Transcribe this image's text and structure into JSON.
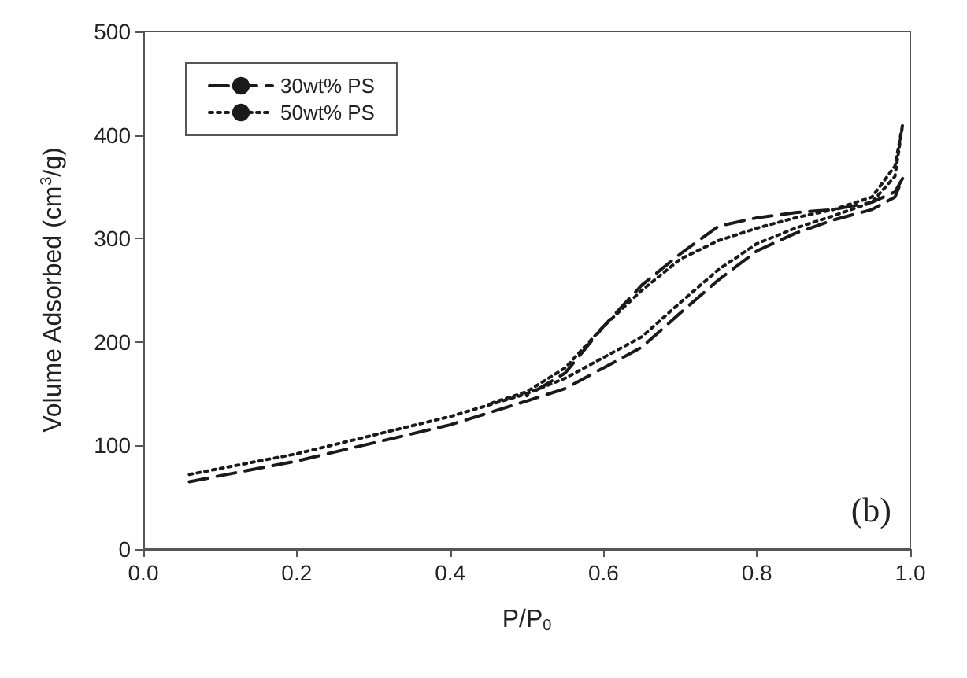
{
  "chart_data": {
    "type": "line",
    "xlabel": "P/P$_{0}$",
    "ylabel": "Volume Adsorbed (cm$^{3}$/g)",
    "xlim": [
      0,
      1
    ],
    "xticks": [
      {
        "value": 0,
        "label": "0.0"
      },
      0.2,
      0.4,
      0.6,
      0.8,
      {
        "value": 1,
        "label": "1.0"
      }
    ],
    "ylim": [
      0,
      500
    ],
    "yticks": [
      0,
      100,
      200,
      300,
      400,
      500
    ],
    "grid": false,
    "legend": "top left",
    "marker": "none",
    "annotations": [
      "(b)"
    ],
    "series": [
      {
        "name": "30wt% PS",
        "color": "#1a1a1a",
        "line_style": "dashed",
        "x": [
          0.06,
          0.2,
          0.4,
          0.5,
          0.55,
          0.6,
          0.65,
          0.7,
          0.75,
          0.8,
          0.85,
          0.9,
          0.95,
          0.98,
          0.99,
          0.98,
          0.95,
          0.9,
          0.85,
          0.8,
          0.75,
          0.7,
          0.65,
          0.6,
          0.55,
          0.5
        ],
        "values": [
          65,
          85,
          120,
          143,
          155,
          175,
          195,
          228,
          260,
          288,
          305,
          318,
          328,
          340,
          358,
          345,
          335,
          328,
          325,
          320,
          312,
          285,
          255,
          215,
          170,
          148
        ]
      },
      {
        "name": "50wt% PS",
        "color": "#1a1a1a",
        "line_style": "dotted",
        "x": [
          0.06,
          0.2,
          0.4,
          0.5,
          0.55,
          0.6,
          0.65,
          0.7,
          0.75,
          0.8,
          0.85,
          0.9,
          0.95,
          0.98,
          0.99,
          0.98,
          0.95,
          0.9,
          0.85,
          0.8,
          0.75,
          0.7,
          0.65,
          0.6,
          0.55,
          0.5,
          0.45
        ],
        "values": [
          72,
          92,
          128,
          150,
          165,
          185,
          205,
          238,
          270,
          295,
          310,
          322,
          335,
          360,
          410,
          370,
          340,
          328,
          320,
          310,
          298,
          280,
          250,
          215,
          175,
          152,
          140
        ]
      }
    ]
  }
}
